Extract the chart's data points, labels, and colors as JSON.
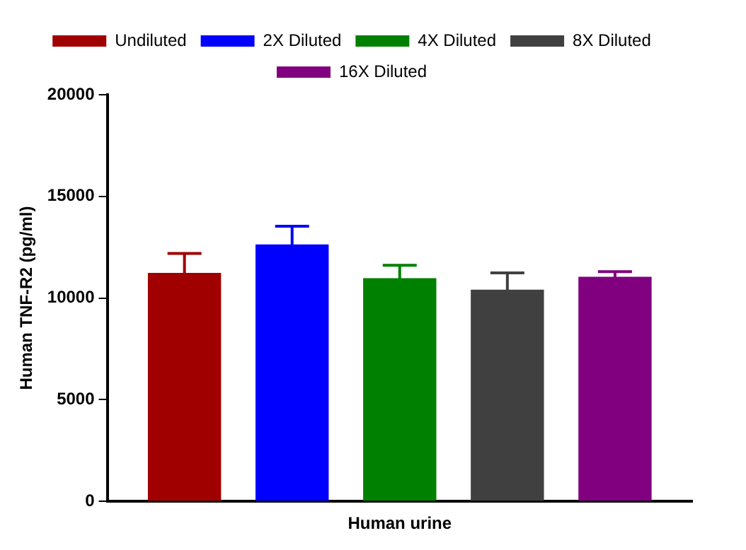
{
  "chart_data": {
    "type": "bar",
    "ylabel": "Human TNF-R2 (pg/ml)",
    "categories": [
      "Human urine"
    ],
    "series": [
      {
        "name": "Undiluted",
        "color": "#a00000",
        "values": [
          11240
        ],
        "errors": [
          950
        ]
      },
      {
        "name": "2X Diluted",
        "color": "#0000ff",
        "values": [
          12640
        ],
        "errors": [
          890
        ]
      },
      {
        "name": "4X Diluted",
        "color": "#008000",
        "values": [
          10980
        ],
        "errors": [
          630
        ]
      },
      {
        "name": "8X Diluted",
        "color": "#404040",
        "values": [
          10410
        ],
        "errors": [
          830
        ]
      },
      {
        "name": "16X Diluted",
        "color": "#800080",
        "values": [
          11050
        ],
        "errors": [
          250
        ]
      }
    ],
    "ylim": [
      0,
      20000
    ],
    "yticks": [
      0,
      5000,
      10000,
      15000,
      20000
    ],
    "grid": false,
    "legend": "top"
  }
}
